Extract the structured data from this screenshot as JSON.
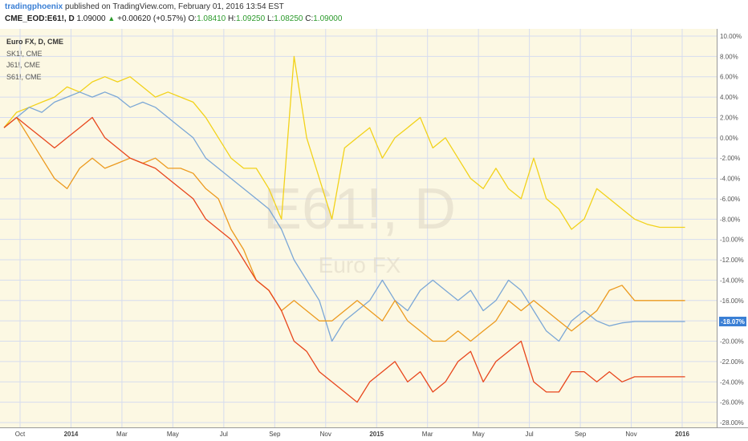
{
  "header": {
    "author": "tradingphoenix",
    "published_text": " published on TradingView.com, February 01, 2016 13:54 EST",
    "symbol": "CME_EOD:E61!, D",
    "last": "1.09000",
    "change": "+0.00620 (+0.57%)",
    "o_label": "O:",
    "o_val": "1.08410",
    "h_label": "H:",
    "h_val": "1.09250",
    "l_label": "L:",
    "l_val": "1.08250",
    "c_label": "C:",
    "c_val": "1.09000"
  },
  "legend": {
    "main": "Euro FX, D, CME",
    "items": [
      "SK1!, CME",
      "J61!, CME",
      "S61!, CME"
    ]
  },
  "watermark": {
    "symbol": "E61!, D",
    "name": "Euro FX"
  },
  "last_value_badge": "-18.07%",
  "colors": {
    "plot_bg": "#fcf8e3",
    "grid": "#d6dcef",
    "yellow": "#f2d21a",
    "blue": "#7ba7d6",
    "orange": "#ec9a1e",
    "red": "#e8461c",
    "badge": "#3a7fd5"
  },
  "chart_data": {
    "type": "line",
    "xlabel": "",
    "ylabel": "",
    "x_ticks": [
      "Oct",
      "2014",
      "Mar",
      "May",
      "Jul",
      "Sep",
      "Nov",
      "2015",
      "Mar",
      "May",
      "Jul",
      "Sep",
      "Nov",
      "2016"
    ],
    "y_ticks": [
      "10.00%",
      "8.00%",
      "6.00%",
      "4.00%",
      "2.00%",
      "0.00%",
      "-2.00%",
      "-4.00%",
      "-6.00%",
      "-8.00%",
      "-10.00%",
      "-12.00%",
      "-14.00%",
      "-16.00%",
      "-18.00%",
      "-20.00%",
      "-22.00%",
      "-24.00%",
      "-26.00%",
      "-28.00%"
    ],
    "ylim": [
      -28,
      10
    ],
    "x_range_months": [
      0,
      28
    ],
    "grid": true,
    "series": [
      {
        "key": "yellow",
        "x": [
          0,
          0.5,
          1,
          1.5,
          2,
          2.5,
          3,
          3.5,
          4,
          4.5,
          5,
          5.5,
          6,
          6.5,
          7,
          7.5,
          8,
          8.5,
          9,
          9.5,
          10,
          10.5,
          11,
          11.5,
          12,
          12.5,
          13,
          13.5,
          14,
          14.5,
          15,
          15.5,
          16,
          16.5,
          17,
          17.5,
          18,
          18.5,
          19,
          19.5,
          20,
          20.5,
          21,
          21.5,
          22,
          22.5,
          23,
          23.5,
          24,
          24.5,
          25,
          25.5,
          26,
          26.5,
          27
        ],
        "y": [
          1,
          2.5,
          3,
          3.5,
          4,
          5,
          4.5,
          5.5,
          6,
          5.5,
          6,
          5,
          4,
          4.5,
          4,
          3.5,
          2,
          0,
          -2,
          -3,
          -3,
          -5,
          -8,
          8,
          0,
          -4,
          -8,
          -1,
          0,
          1,
          -2,
          0,
          1,
          2,
          -1,
          0,
          -2,
          -4,
          -5,
          -3,
          -5,
          -6,
          -2,
          -6,
          -7,
          -9,
          -8,
          -5,
          -6,
          -7,
          -8,
          -8.5,
          -8.8,
          -8.8,
          -8.8
        ]
      },
      {
        "key": "blue",
        "x": [
          0,
          0.5,
          1,
          1.5,
          2,
          2.5,
          3,
          3.5,
          4,
          4.5,
          5,
          5.5,
          6,
          6.5,
          7,
          7.5,
          8,
          8.5,
          9,
          9.5,
          10,
          10.5,
          11,
          11.5,
          12,
          12.5,
          13,
          13.5,
          14,
          14.5,
          15,
          15.5,
          16,
          16.5,
          17,
          17.5,
          18,
          18.5,
          19,
          19.5,
          20,
          20.5,
          21,
          21.5,
          22,
          22.5,
          23,
          23.5,
          24,
          24.5,
          25,
          25.5,
          26,
          26.5,
          27
        ],
        "y": [
          1,
          2,
          3,
          2.5,
          3.5,
          4,
          4.5,
          4,
          4.5,
          4,
          3,
          3.5,
          3,
          2,
          1,
          0,
          -2,
          -3,
          -4,
          -5,
          -6,
          -7,
          -9,
          -12,
          -14,
          -16,
          -20,
          -18,
          -17,
          -16,
          -14,
          -16,
          -17,
          -15,
          -14,
          -15,
          -16,
          -15,
          -17,
          -16,
          -14,
          -15,
          -17,
          -19,
          -20,
          -18,
          -17,
          -18,
          -18.5,
          -18.2,
          -18.07,
          -18.07,
          -18.07,
          -18.07,
          -18.07
        ]
      },
      {
        "key": "orange",
        "x": [
          0,
          0.5,
          1,
          1.5,
          2,
          2.5,
          3,
          3.5,
          4,
          4.5,
          5,
          5.5,
          6,
          6.5,
          7,
          7.5,
          8,
          8.5,
          9,
          9.5,
          10,
          10.5,
          11,
          11.5,
          12,
          12.5,
          13,
          13.5,
          14,
          14.5,
          15,
          15.5,
          16,
          16.5,
          17,
          17.5,
          18,
          18.5,
          19,
          19.5,
          20,
          20.5,
          21,
          21.5,
          22,
          22.5,
          23,
          23.5,
          24,
          24.5,
          25,
          25.5,
          26,
          26.5,
          27
        ],
        "y": [
          1,
          2,
          0,
          -2,
          -4,
          -5,
          -3,
          -2,
          -3,
          -2.5,
          -2,
          -2.5,
          -2,
          -3,
          -3,
          -3.5,
          -5,
          -6,
          -9,
          -11,
          -14,
          -15,
          -17,
          -16,
          -17,
          -18,
          -18,
          -17,
          -16,
          -17,
          -18,
          -16,
          -18,
          -19,
          -20,
          -20,
          -19,
          -20,
          -19,
          -18,
          -16,
          -17,
          -16,
          -17,
          -18,
          -19,
          -18,
          -17,
          -15,
          -14.5,
          -16,
          -16,
          -16,
          -16,
          -16
        ]
      },
      {
        "key": "red",
        "x": [
          0,
          0.5,
          1,
          1.5,
          2,
          2.5,
          3,
          3.5,
          4,
          4.5,
          5,
          5.5,
          6,
          6.5,
          7,
          7.5,
          8,
          8.5,
          9,
          9.5,
          10,
          10.5,
          11,
          11.5,
          12,
          12.5,
          13,
          13.5,
          14,
          14.5,
          15,
          15.5,
          16,
          16.5,
          17,
          17.5,
          18,
          18.5,
          19,
          19.5,
          20,
          20.5,
          21,
          21.5,
          22,
          22.5,
          23,
          23.5,
          24,
          24.5,
          25,
          25.5,
          26,
          26.5,
          27
        ],
        "y": [
          1,
          2,
          1,
          0,
          -1,
          0,
          1,
          2,
          0,
          -1,
          -2,
          -2.5,
          -3,
          -4,
          -5,
          -6,
          -8,
          -9,
          -10,
          -12,
          -14,
          -15,
          -17,
          -20,
          -21,
          -23,
          -24,
          -25,
          -26,
          -24,
          -23,
          -22,
          -24,
          -23,
          -25,
          -24,
          -22,
          -21,
          -24,
          -22,
          -21,
          -20,
          -24,
          -25,
          -25,
          -23,
          -23,
          -24,
          -23,
          -24,
          -23.5,
          -23.5,
          -23.5,
          -23.5,
          -23.5
        ]
      }
    ]
  }
}
